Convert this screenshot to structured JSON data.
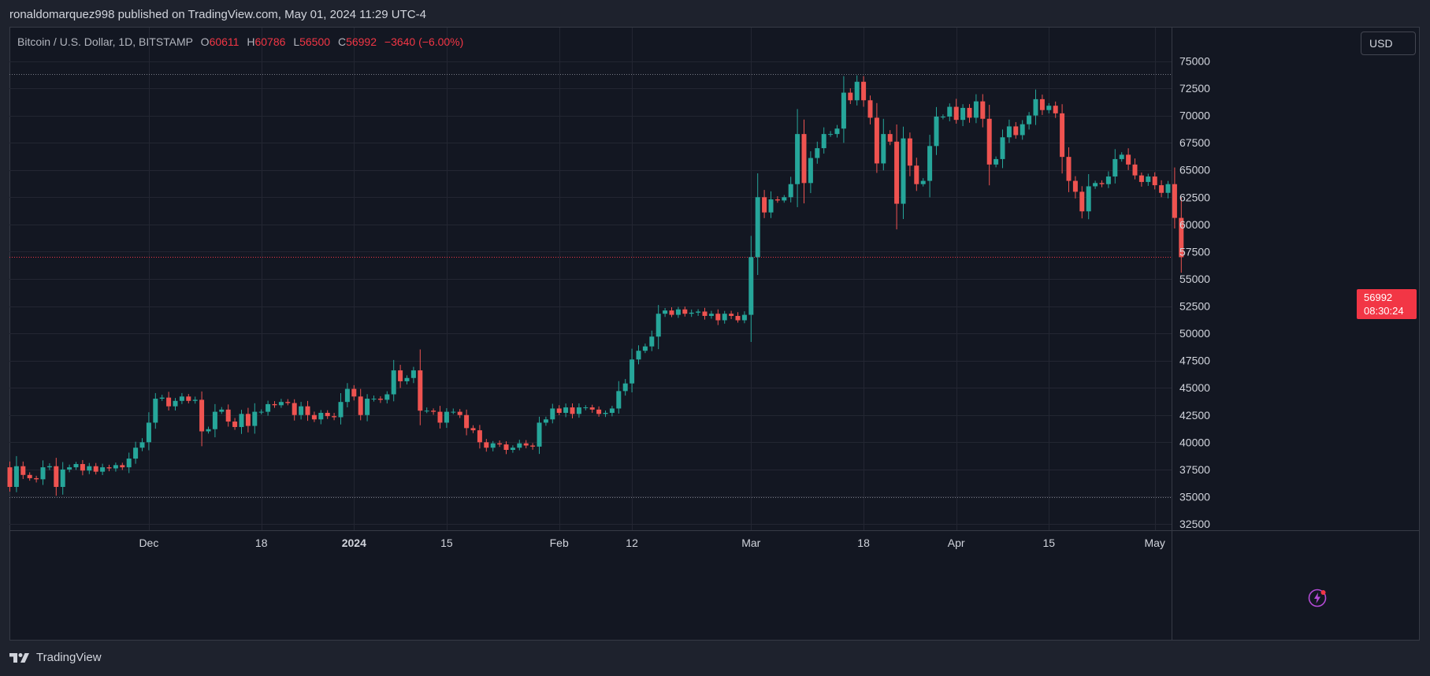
{
  "header": {
    "published_line": "ronaldomarquez998 published on TradingView.com, May 01, 2024 11:29 UTC-4"
  },
  "legend": {
    "symbol": "Bitcoin / U.S. Dollar, 1D, BITSTAMP",
    "open_label": "O",
    "open": "60611",
    "high_label": "H",
    "high": "60786",
    "low_label": "L",
    "low": "56500",
    "close_label": "C",
    "close": "56992",
    "change": "−3640 (−6.00%)"
  },
  "currency_button": "USD",
  "last_price": {
    "price": "56992",
    "countdown": "08:30:24"
  },
  "footer": {
    "brand": "TradingView"
  },
  "colors": {
    "up": "#26a69a",
    "down": "#ef5350",
    "background": "#131722",
    "grid": "#232632",
    "text": "#d1d4dc",
    "last_price": "#f23645"
  },
  "chart_data": {
    "type": "candlestick",
    "title": "Bitcoin / U.S. Dollar, 1D, BITSTAMP",
    "y_axis": {
      "ticks": [
        32500,
        35000,
        37500,
        40000,
        42500,
        45000,
        47500,
        50000,
        52500,
        55000,
        57500,
        60000,
        62500,
        65000,
        67500,
        70000,
        72500,
        75000
      ],
      "range": [
        32000,
        77000
      ]
    },
    "x_axis": {
      "labels": [
        {
          "day": 21,
          "text": "Dec",
          "bold": false
        },
        {
          "day": 38,
          "text": "18",
          "bold": false
        },
        {
          "day": 52,
          "text": "2024",
          "bold": true
        },
        {
          "day": 66,
          "text": "15",
          "bold": false
        },
        {
          "day": 83,
          "text": "Feb",
          "bold": false
        },
        {
          "day": 94,
          "text": "12",
          "bold": false
        },
        {
          "day": 112,
          "text": "Mar",
          "bold": false
        },
        {
          "day": 129,
          "text": "18",
          "bold": false
        },
        {
          "day": 143,
          "text": "Apr",
          "bold": false
        },
        {
          "day": 157,
          "text": "15",
          "bold": false
        },
        {
          "day": 173,
          "text": "May",
          "bold": false
        }
      ]
    },
    "reference_lines": [
      {
        "value": 73800,
        "style": "dotted-gray"
      },
      {
        "value": 34950,
        "style": "dotted-gray"
      },
      {
        "value": 56992,
        "style": "dotted-red"
      }
    ],
    "closes": [
      35900,
      37800,
      37000,
      36700,
      36600,
      37700,
      37800,
      35900,
      37500,
      37700,
      38000,
      37400,
      37800,
      37300,
      37700,
      37600,
      37900,
      37700,
      38500,
      39500,
      40000,
      41800,
      44000,
      44100,
      43300,
      43800,
      44200,
      43800,
      43900,
      41000,
      41200,
      42800,
      43000,
      41900,
      41400,
      42600,
      41500,
      42800,
      42800,
      43500,
      43400,
      43700,
      43600,
      42500,
      43300,
      42500,
      42100,
      42700,
      42400,
      42300,
      43700,
      44900,
      44200,
      42500,
      44000,
      44000,
      43900,
      44400,
      46600,
      45600,
      45900,
      46600,
      42900,
      42900,
      42800,
      41800,
      42800,
      42800,
      42500,
      41300,
      41100,
      40000,
      39500,
      39900,
      39800,
      39300,
      39500,
      39900,
      39700,
      39600,
      41800,
      42100,
      43100,
      42700,
      43200,
      42600,
      43200,
      43200,
      43000,
      42600,
      42700,
      43100,
      44700,
      45400,
      47600,
      48400,
      48800,
      49700,
      51800,
      52100,
      51700,
      52200,
      51800,
      51900,
      52000,
      51600,
      51800,
      51200,
      51800,
      51600,
      51200,
      51700,
      57000,
      62500,
      61100,
      62300,
      62200,
      62500,
      63700,
      68300,
      63800,
      66100,
      67000,
      68300,
      68300,
      68800,
      72100,
      71400,
      73100,
      71400,
      69800,
      65600,
      68300,
      67600,
      61900,
      67900,
      65400,
      63700,
      64000,
      67200,
      69900,
      69900,
      70800,
      69600,
      70700,
      69800,
      71300,
      69700,
      65500,
      66000,
      68000,
      69000,
      68200,
      69200,
      70000,
      71500,
      70500,
      70900,
      70200,
      66200,
      64000,
      63000,
      61200,
      63500,
      63800,
      63700,
      64400,
      66000,
      66400,
      65500,
      64500,
      63900,
      64400,
      63600,
      62900,
      63700,
      60600,
      56992
    ]
  }
}
